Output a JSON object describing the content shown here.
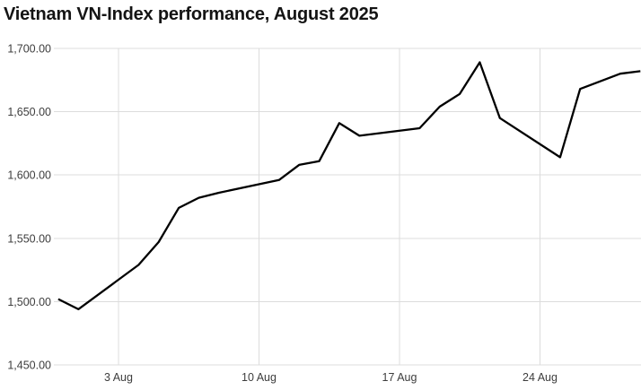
{
  "title": "Vietnam VN-Index performance, August 2025",
  "chart_data": {
    "type": "line",
    "title": "Vietnam VN-Index performance, August 2025",
    "xlabel": "",
    "ylabel": "",
    "legend": "none",
    "grid": "on",
    "x_axis": {
      "kind": "date",
      "range_start": "2025-07-31",
      "range_end": "2025-08-29",
      "ticks": [
        {
          "label": "3 Aug",
          "date": "2025-08-03"
        },
        {
          "label": "10 Aug",
          "date": "2025-08-10"
        },
        {
          "label": "17 Aug",
          "date": "2025-08-17"
        },
        {
          "label": "24 Aug",
          "date": "2025-08-24"
        }
      ]
    },
    "y_axis": {
      "min": 1450,
      "max": 1700,
      "tick_step": 50,
      "ticks": [
        {
          "label": "1,700.00",
          "value": 1700
        },
        {
          "label": "1,650.00",
          "value": 1650
        },
        {
          "label": "1,600.00",
          "value": 1600
        },
        {
          "label": "1,550.00",
          "value": 1550
        },
        {
          "label": "1,500.00",
          "value": 1500
        },
        {
          "label": "1,450.00",
          "value": 1450
        }
      ]
    },
    "series": [
      {
        "name": "VN-Index",
        "points": [
          {
            "date": "2025-07-31",
            "value": 1502
          },
          {
            "date": "2025-08-01",
            "value": 1494
          },
          {
            "date": "2025-08-04",
            "value": 1529
          },
          {
            "date": "2025-08-05",
            "value": 1547
          },
          {
            "date": "2025-08-06",
            "value": 1574
          },
          {
            "date": "2025-08-07",
            "value": 1582
          },
          {
            "date": "2025-08-08",
            "value": 1586
          },
          {
            "date": "2025-08-11",
            "value": 1596
          },
          {
            "date": "2025-08-12",
            "value": 1608
          },
          {
            "date": "2025-08-13",
            "value": 1611
          },
          {
            "date": "2025-08-14",
            "value": 1641
          },
          {
            "date": "2025-08-15",
            "value": 1631
          },
          {
            "date": "2025-08-18",
            "value": 1637
          },
          {
            "date": "2025-08-19",
            "value": 1654
          },
          {
            "date": "2025-08-20",
            "value": 1664
          },
          {
            "date": "2025-08-21",
            "value": 1689
          },
          {
            "date": "2025-08-22",
            "value": 1645
          },
          {
            "date": "2025-08-25",
            "value": 1614
          },
          {
            "date": "2025-08-26",
            "value": 1668
          },
          {
            "date": "2025-08-27",
            "value": 1674
          },
          {
            "date": "2025-08-28",
            "value": 1680
          },
          {
            "date": "2025-08-29",
            "value": 1682
          }
        ]
      }
    ],
    "styles": {
      "line_color": "#000000",
      "grid_color": "#dcdcdc",
      "tick_label_color": "#3d3d3d",
      "title_color": "#141414",
      "background": "#ffffff"
    }
  }
}
